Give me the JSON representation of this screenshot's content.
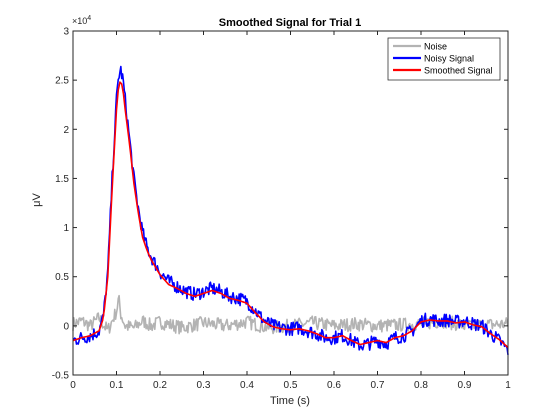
{
  "chart_data": {
    "type": "line",
    "title": "Smoothed Signal for Trial 1",
    "xlabel": "Time (s)",
    "ylabel": "μV",
    "exponent_label": "×10",
    "exponent_power": "4",
    "xlim": [
      0,
      1
    ],
    "ylim": [
      -0.5,
      3
    ],
    "y_multiplier": 10000,
    "xticks": [
      0,
      0.1,
      0.2,
      0.3,
      0.4,
      0.5,
      0.6,
      0.7,
      0.8,
      0.9,
      1
    ],
    "xtick_labels": [
      "0",
      "0.1",
      "0.2",
      "0.3",
      "0.4",
      "0.5",
      "0.6",
      "0.7",
      "0.8",
      "0.9",
      "1"
    ],
    "yticks": [
      -0.5,
      0,
      0.5,
      1,
      1.5,
      2,
      2.5,
      3
    ],
    "ytick_labels": [
      "-0.5",
      "0",
      "0.5",
      "1",
      "1.5",
      "2",
      "2.5",
      "3"
    ],
    "grid": false,
    "legend_position": "top-right",
    "colors": {
      "noise": "#b3b3b3",
      "noisy": "#0000ff",
      "smoothed": "#ff0000",
      "axis": "#262626"
    },
    "series": [
      {
        "name": "Noise",
        "x": [
          0,
          0.02,
          0.04,
          0.06,
          0.08,
          0.09,
          0.1,
          0.105,
          0.11,
          0.12,
          0.14,
          0.16,
          0.18,
          0.2,
          0.25,
          0.3,
          0.35,
          0.4,
          0.45,
          0.5,
          0.55,
          0.6,
          0.65,
          0.7,
          0.75,
          0.8,
          0.85,
          0.9,
          0.95,
          1
        ],
        "values": [
          0.02,
          0.05,
          0.0,
          0.08,
          -0.05,
          0.05,
          0.15,
          0.28,
          0.12,
          0.0,
          -0.02,
          0.05,
          0.0,
          0.04,
          -0.02,
          0.03,
          0.0,
          0.04,
          -0.02,
          0.0,
          0.03,
          0.0,
          0.02,
          0.0,
          0.01,
          0.02,
          0.05,
          0.0,
          0.01,
          0.02
        ]
      },
      {
        "name": "Noisy Signal",
        "x": [
          0,
          0.02,
          0.04,
          0.06,
          0.07,
          0.08,
          0.09,
          0.1,
          0.105,
          0.11,
          0.115,
          0.12,
          0.13,
          0.14,
          0.15,
          0.16,
          0.17,
          0.18,
          0.2,
          0.22,
          0.24,
          0.26,
          0.28,
          0.3,
          0.32,
          0.34,
          0.36,
          0.38,
          0.4,
          0.42,
          0.44,
          0.46,
          0.48,
          0.5,
          0.52,
          0.54,
          0.56,
          0.58,
          0.6,
          0.62,
          0.64,
          0.66,
          0.68,
          0.7,
          0.72,
          0.74,
          0.76,
          0.78,
          0.8,
          0.82,
          0.84,
          0.86,
          0.88,
          0.9,
          0.92,
          0.94,
          0.96,
          0.98,
          1
        ],
        "values": [
          -0.15,
          -0.12,
          -0.1,
          -0.05,
          0.1,
          0.55,
          1.5,
          2.3,
          2.55,
          2.6,
          2.5,
          2.3,
          1.9,
          1.5,
          1.2,
          0.95,
          0.8,
          0.7,
          0.55,
          0.45,
          0.4,
          0.35,
          0.32,
          0.35,
          0.38,
          0.35,
          0.3,
          0.28,
          0.25,
          0.15,
          0.05,
          0.0,
          -0.02,
          -0.03,
          -0.02,
          -0.05,
          -0.08,
          -0.12,
          -0.12,
          -0.1,
          -0.15,
          -0.2,
          -0.18,
          -0.15,
          -0.18,
          -0.12,
          -0.1,
          -0.05,
          0.05,
          0.07,
          0.05,
          0.06,
          0.04,
          0.05,
          0.02,
          0.0,
          -0.08,
          -0.15,
          -0.25
        ]
      },
      {
        "name": "Smoothed Signal",
        "x": [
          0,
          0.02,
          0.04,
          0.06,
          0.07,
          0.08,
          0.09,
          0.1,
          0.105,
          0.11,
          0.115,
          0.12,
          0.13,
          0.14,
          0.15,
          0.16,
          0.17,
          0.18,
          0.2,
          0.22,
          0.24,
          0.26,
          0.28,
          0.3,
          0.32,
          0.34,
          0.36,
          0.38,
          0.4,
          0.42,
          0.44,
          0.46,
          0.48,
          0.5,
          0.52,
          0.54,
          0.56,
          0.58,
          0.6,
          0.62,
          0.64,
          0.66,
          0.68,
          0.7,
          0.72,
          0.74,
          0.76,
          0.78,
          0.8,
          0.82,
          0.84,
          0.86,
          0.88,
          0.9,
          0.92,
          0.94,
          0.96,
          0.98,
          1
        ],
        "values": [
          -0.15,
          -0.12,
          -0.1,
          -0.05,
          0.08,
          0.5,
          1.4,
          2.2,
          2.45,
          2.5,
          2.4,
          2.2,
          1.85,
          1.45,
          1.15,
          0.9,
          0.77,
          0.67,
          0.52,
          0.42,
          0.38,
          0.33,
          0.3,
          0.33,
          0.36,
          0.33,
          0.28,
          0.26,
          0.23,
          0.13,
          0.04,
          -0.01,
          -0.03,
          -0.04,
          -0.03,
          -0.05,
          -0.08,
          -0.12,
          -0.12,
          -0.1,
          -0.15,
          -0.19,
          -0.17,
          -0.15,
          -0.17,
          -0.12,
          -0.1,
          -0.05,
          0.04,
          0.06,
          0.05,
          0.05,
          0.03,
          0.04,
          0.01,
          -0.01,
          -0.08,
          -0.14,
          -0.22
        ]
      }
    ]
  }
}
